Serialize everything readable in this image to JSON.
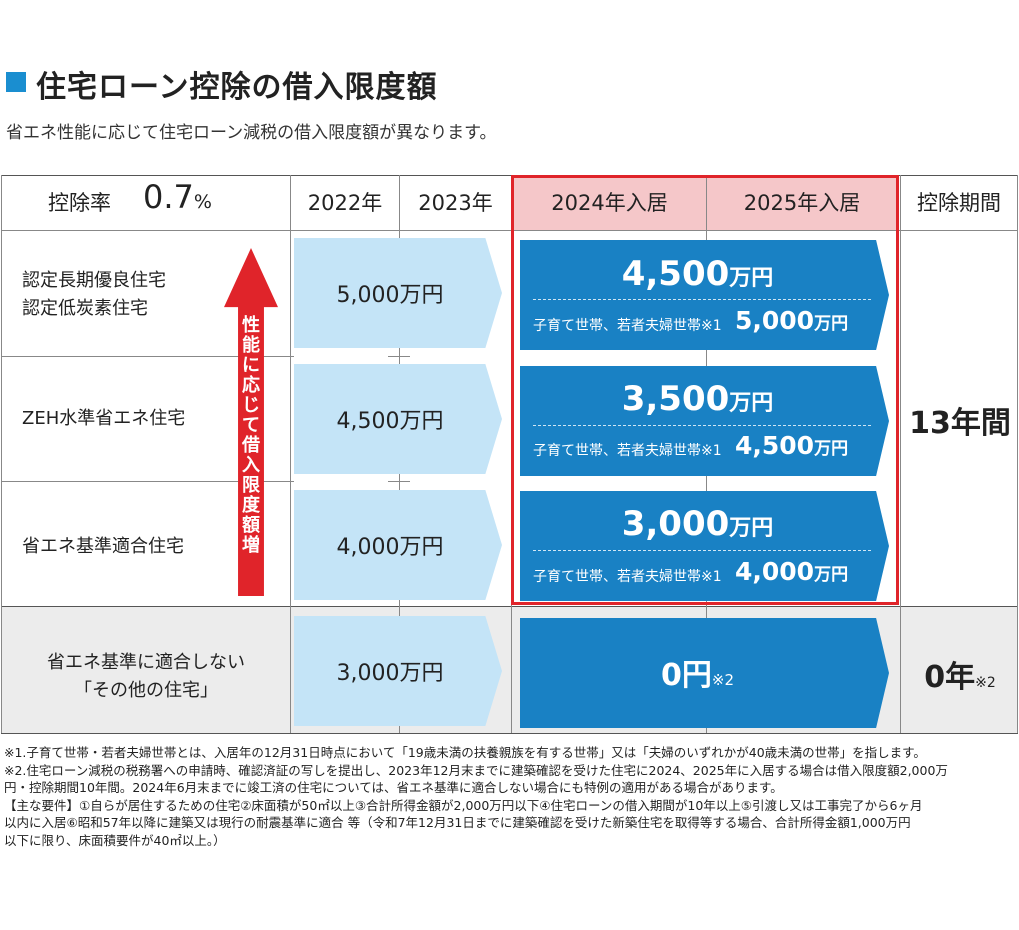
{
  "heading": {
    "title": "住宅ローン控除の借入限度額",
    "subtitle": "省エネ性能に応じて住宅ローン減税の借入限度額が異なります。"
  },
  "colors": {
    "accent_blue": "#1981c4",
    "light_blue": "#c4e4f7",
    "red": "#e0242a",
    "pink": "#f5c7c9"
  },
  "table": {
    "rate_label": "控除率",
    "rate_value": "0.7",
    "rate_unit": "%",
    "columns": [
      "2022年",
      "2023年",
      "2024年入居",
      "2025年入居",
      "控除期間"
    ],
    "arrow_text": "性能に応じて借入限度額増",
    "rows": [
      {
        "label": "認定長期優良住宅\n認定低炭素住宅",
        "old_limit": "5,000万円",
        "new_amount": "4,500",
        "new_unit": "万円",
        "child_label": "子育て世帯、若者夫婦世帯※1",
        "child_amount": "5,000",
        "child_unit": "万円"
      },
      {
        "label": "ZEH水準省エネ住宅",
        "old_limit": "4,500万円",
        "new_amount": "3,500",
        "new_unit": "万円",
        "child_label": "子育て世帯、若者夫婦世帯※1",
        "child_amount": "4,500",
        "child_unit": "万円"
      },
      {
        "label": "省エネ基準適合住宅",
        "old_limit": "4,000万円",
        "new_amount": "3,000",
        "new_unit": "万円",
        "child_label": "子育て世帯、若者夫婦世帯※1",
        "child_amount": "4,000",
        "child_unit": "万円"
      }
    ],
    "period_main": "13年間",
    "last_row": {
      "label": "省エネ基準に適合しない\n「その他の住宅」",
      "old_limit": "3,000万円",
      "new_amount": "0円",
      "new_note": "※2",
      "period": "0年",
      "period_note": "※2"
    }
  },
  "notes": [
    "※1.子育て世帯・若者夫婦世帯とは、入居年の12月31日時点において「19歳未満の扶養親族を有する世帯」又は「夫婦のいずれかが40歳未満の世帯」を指します。",
    "※2.住宅ローン減税の税務署への申請時、確認済証の写しを提出し、2023年12月末までに建築確認を受けた住宅に2024、2025年に入居する場合は借入限度額2,000万",
    "円・控除期間10年間。2024年6月末までに竣工済の住宅については、省エネ基準に適合しない場合にも特例の適用がある場合があります。",
    "【主な要件】①自らが居住するための住宅②床面積が50㎡以上③合計所得金額が2,000万円以下④住宅ローンの借入期間が10年以上⑤引渡し又は工事完了から6ヶ月",
    "以内に入居⑥昭和57年以降に建築又は現行の耐震基準に適合 等（令和7年12月31日までに建築確認を受けた新築住宅を取得等する場合、合計所得金額1,000万円",
    "以下に限り、床面積要件が40㎡以上。）"
  ]
}
